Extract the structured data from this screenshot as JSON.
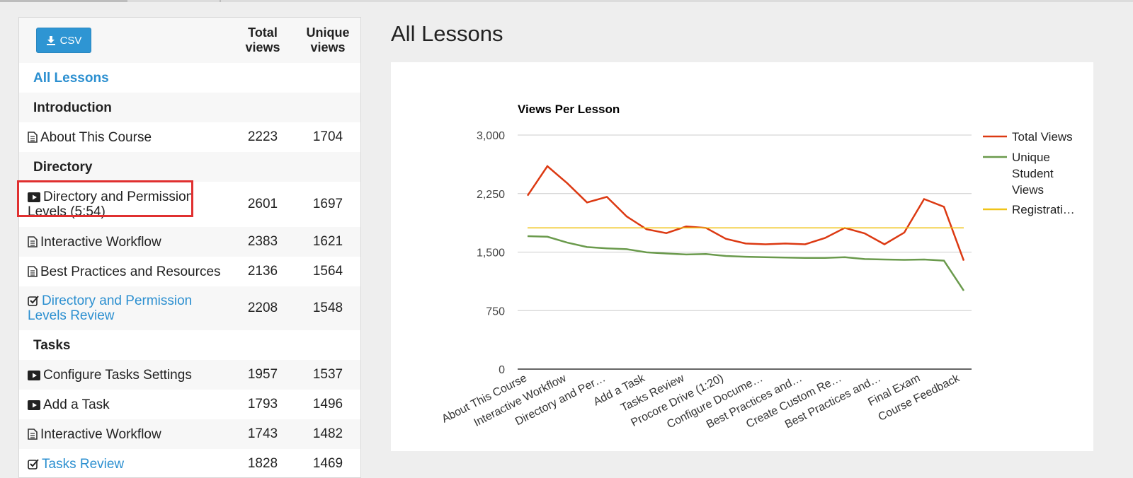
{
  "toolbar": {
    "csv_label": "CSV"
  },
  "table": {
    "col_total": "Total views",
    "col_unique": "Unique views",
    "all_lessons": "All Lessons",
    "sections": [
      {
        "title": "Introduction"
      },
      {
        "title": "Directory"
      },
      {
        "title": "Tasks"
      }
    ],
    "rows": [
      {
        "icon": "document-icon",
        "name": "About This Course",
        "total": "2223",
        "unique": "1704"
      },
      {
        "icon": "video-icon",
        "name": "Directory and Permission Levels (5:54)",
        "total": "2601",
        "unique": "1697"
      },
      {
        "icon": "document-icon",
        "name": "Interactive Workflow",
        "total": "2383",
        "unique": "1621"
      },
      {
        "icon": "document-icon",
        "name": "Best Practices and Resources",
        "total": "2136",
        "unique": "1564"
      },
      {
        "icon": "checkbox-icon",
        "name": "Directory and Permission Levels Review",
        "total": "2208",
        "unique": "1548"
      },
      {
        "icon": "video-icon",
        "name": "Configure Tasks Settings",
        "total": "1957",
        "unique": "1537"
      },
      {
        "icon": "video-icon",
        "name": "Add a Task",
        "total": "1793",
        "unique": "1496"
      },
      {
        "icon": "document-icon",
        "name": "Interactive Workflow",
        "total": "1743",
        "unique": "1482"
      },
      {
        "icon": "checkbox-icon",
        "name": "Tasks Review",
        "total": "1828",
        "unique": "1469"
      }
    ]
  },
  "main": {
    "title": "All Lessons"
  },
  "chart_data": {
    "type": "line",
    "title": "Views Per Lesson",
    "ylim": [
      0,
      3000
    ],
    "yticks": [
      "0",
      "750",
      "1,500",
      "2,250",
      "3,000"
    ],
    "yticks_values": [
      0,
      750,
      1500,
      2250,
      3000
    ],
    "x_labels": [
      "About This Course",
      "Interactive Workflow",
      "Directory and Per…",
      "Add a Task",
      "Tasks Review",
      "Procore Drive (1:20)",
      "Configure Docume…",
      "Best Practices and…",
      "Create Custom Re…",
      "Best Practices and…",
      "Final Exam",
      "Course Feedback"
    ],
    "series": [
      {
        "name": "Total Views",
        "color": "#dc3912",
        "values": [
          2223,
          2601,
          2383,
          2136,
          2208,
          1957,
          1793,
          1743,
          1828,
          1810,
          1670,
          1610,
          1600,
          1610,
          1600,
          1680,
          1810,
          1740,
          1600,
          1750,
          2180,
          2080,
          1390
        ]
      },
      {
        "name": "Unique Student Views",
        "color": "#6a9a4c",
        "values": [
          1704,
          1697,
          1621,
          1564,
          1548,
          1537,
          1496,
          1482,
          1469,
          1475,
          1450,
          1440,
          1435,
          1430,
          1425,
          1425,
          1435,
          1410,
          1405,
          1400,
          1405,
          1390,
          1005
        ]
      },
      {
        "name": "Registrati…",
        "color": "#f0c419",
        "values": [
          1810,
          1810,
          1810,
          1810,
          1810,
          1810,
          1810,
          1810,
          1810,
          1810,
          1810,
          1810,
          1810,
          1810,
          1810,
          1810,
          1810,
          1810,
          1810,
          1810,
          1810,
          1810,
          1810
        ]
      }
    ],
    "legend": [
      "Total Views",
      "Unique Student Views",
      "Registrati…"
    ],
    "legend_position": "right",
    "grid": true
  }
}
